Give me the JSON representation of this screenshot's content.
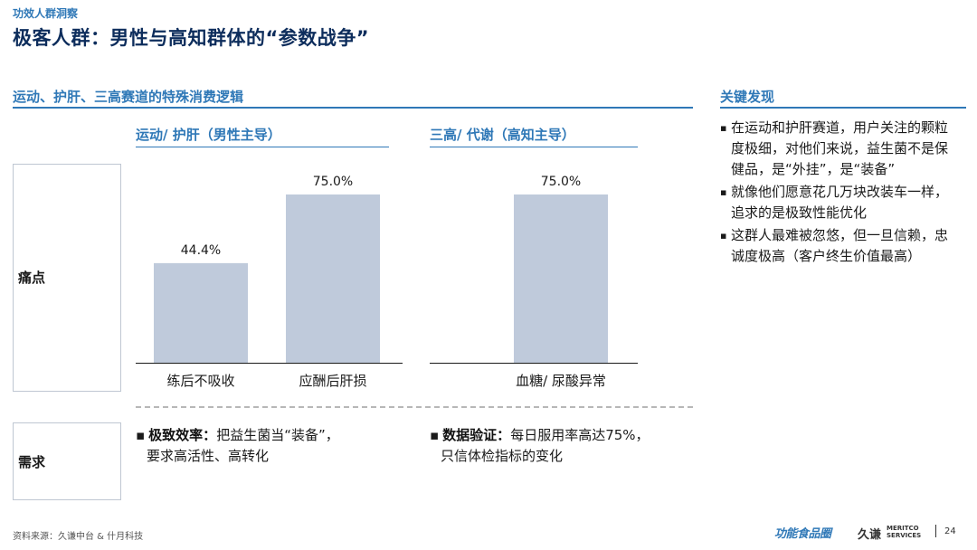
{
  "header": {
    "eyebrow": "功效人群洞察",
    "title": "极客人群：男性与高知群体的“参数战争”"
  },
  "left_section": {
    "title": "运动、护肝、三高赛道的特殊消费逻辑",
    "groups": [
      {
        "title": "运动/ 护肝（男性主导）"
      },
      {
        "title": "三高/ 代谢（高知主导）"
      }
    ],
    "rows": [
      {
        "label": "痛点"
      },
      {
        "label": "需求"
      }
    ]
  },
  "needs": [
    {
      "bold": "极致效率：",
      "text": "把益生菌当“装备”，",
      "line2": "要求高活性、高转化"
    },
    {
      "bold": "数据验证：",
      "text": "每日服用率高达75%，",
      "line2": "只信体检指标的变化"
    }
  ],
  "chart_data": {
    "type": "bar",
    "categories": [
      "练后不吸收",
      "应酬后肝损",
      "血糖/ 尿酸异常"
    ],
    "values": [
      44.4,
      75.0,
      75.0
    ],
    "value_labels": [
      "44.4%",
      "75.0%",
      "75.0%"
    ],
    "unit": "%",
    "ylim": [
      0,
      100
    ],
    "groups": [
      {
        "title": "运动/ 护肝（男性主导）",
        "categories": [
          "练后不吸收",
          "应酬后肝损"
        ]
      },
      {
        "title": "三高/ 代谢（高知主导）",
        "categories": [
          "血糖/ 尿酸异常"
        ]
      }
    ],
    "bar_color": "#bfcadb",
    "grid": false,
    "axis_visible": false
  },
  "findings": {
    "title": "关键发现",
    "items": [
      "在运动和护肝赛道，用户关注的颗粒度极细，对他们来说，益生菌不是保健品，是“外挂”，是“装备”",
      "就像他们愿意花几万块改装车一样，追求的是极致性能优化",
      "这群人最难被忽悠，但一旦信赖，忠诚度极高（客户终生价值最高）"
    ]
  },
  "footer": {
    "source": "资料来源：久谦中台 & 什月科技",
    "brand_1": "功能食品圈",
    "brand_2": "久谦",
    "brand_2_en_1": "MERITCO",
    "brand_2_en_2": "SERVICES",
    "page": "24"
  },
  "colors": {
    "accent": "#2f78b7",
    "title": "#0d2d5c",
    "bar": "#bfcadb"
  }
}
